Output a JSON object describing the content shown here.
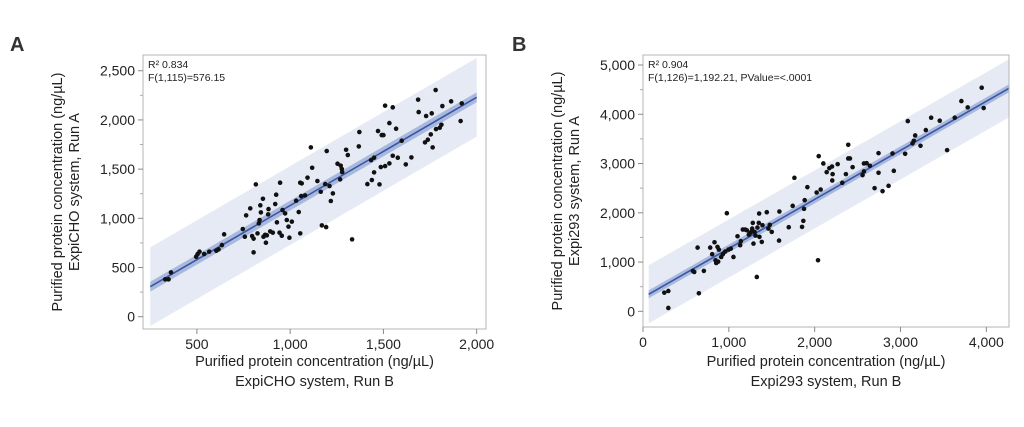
{
  "chart_data": [
    {
      "type": "scatter",
      "panel_label": "A",
      "stats": [
        "R² 0.834",
        "F(1,115)=576.15"
      ],
      "xlabel": [
        "Purified protein concentration (ng/µL)",
        "ExpiCHO system, Run B"
      ],
      "ylabel": [
        "Purified protein concentration (ng/µL)",
        "ExpiCHO system, Run A"
      ],
      "xlim": [
        211,
        2050
      ],
      "ylim": [
        -125,
        2660
      ],
      "xticks": [
        500,
        1000,
        1500,
        2000
      ],
      "xtick_labels": [
        "500",
        "1,000",
        "1,500",
        "2,000"
      ],
      "yticks": [
        0,
        500,
        1000,
        1500,
        2000,
        2500
      ],
      "ytick_labels": [
        "0",
        "500",
        "1,000",
        "1,500",
        "2,000",
        "2,500"
      ],
      "grid": false,
      "fit": {
        "slope": 1.1,
        "intercept": 30,
        "x_range": [
          250,
          2000
        ],
        "confidence_halfwidth": 50,
        "prediction_halfwidth": 400
      },
      "colors": {
        "points": "#111111",
        "fit_line": "#3a56a3",
        "confidence_band": "#a9b9de",
        "prediction_band": "#e5eaf5"
      },
      "points": [
        [
          330,
          380
        ],
        [
          348,
          380
        ],
        [
          361,
          450
        ],
        [
          496,
          610
        ],
        [
          504,
          637
        ],
        [
          514,
          661
        ],
        [
          539,
          637
        ],
        [
          566,
          661
        ],
        [
          604,
          671
        ],
        [
          616,
          684
        ],
        [
          634,
          728
        ],
        [
          646,
          837
        ],
        [
          746,
          891
        ],
        [
          757,
          813
        ],
        [
          764,
          1030
        ],
        [
          786,
          1101
        ],
        [
          796,
          820
        ],
        [
          804,
          793
        ],
        [
          804,
          654
        ],
        [
          816,
          1345
        ],
        [
          825,
          847
        ],
        [
          832,
          949
        ],
        [
          836,
          983
        ],
        [
          840,
          1132
        ],
        [
          843,
          1060
        ],
        [
          854,
          1199
        ],
        [
          857,
          813
        ],
        [
          866,
          833
        ],
        [
          870,
          752
        ],
        [
          875,
          827
        ],
        [
          882,
          1040
        ],
        [
          884,
          1094
        ],
        [
          893,
          867
        ],
        [
          907,
          854
        ],
        [
          920,
          1145
        ],
        [
          925,
          1240
        ],
        [
          929,
          959
        ],
        [
          943,
          854
        ],
        [
          946,
          1362
        ],
        [
          955,
          823
        ],
        [
          959,
          1084
        ],
        [
          973,
          1050
        ],
        [
          982,
          983
        ],
        [
          991,
          915
        ],
        [
          996,
          803
        ],
        [
          1009,
          966
        ],
        [
          1032,
          1179
        ],
        [
          1046,
          1064
        ],
        [
          1054,
          1362
        ],
        [
          1054,
          847
        ],
        [
          1059,
          1226
        ],
        [
          1062,
          1355
        ],
        [
          1080,
          1233
        ],
        [
          1093,
          1413
        ],
        [
          1111,
          1721
        ],
        [
          1118,
          1514
        ],
        [
          1146,
          1379
        ],
        [
          1164,
          1270
        ],
        [
          1170,
          928
        ],
        [
          1188,
          1348
        ],
        [
          1193,
          911
        ],
        [
          1196,
          1684
        ],
        [
          1211,
          1328
        ],
        [
          1218,
          1176
        ],
        [
          1229,
          1253
        ],
        [
          1254,
          1555
        ],
        [
          1268,
          1396
        ],
        [
          1271,
          1535
        ],
        [
          1277,
          1501
        ],
        [
          1279,
          1470
        ],
        [
          1300,
          1697
        ],
        [
          1309,
          1643
        ],
        [
          1332,
          786
        ],
        [
          1368,
          1731
        ],
        [
          1371,
          1877
        ],
        [
          1414,
          1348
        ],
        [
          1434,
          1592
        ],
        [
          1438,
          1389
        ],
        [
          1450,
          1616
        ],
        [
          1450,
          1467
        ],
        [
          1471,
          1887
        ],
        [
          1479,
          1345
        ],
        [
          1486,
          1521
        ],
        [
          1491,
          1846
        ],
        [
          1500,
          1846
        ],
        [
          1509,
          1531
        ],
        [
          1509,
          2145
        ],
        [
          1532,
          1968
        ],
        [
          1532,
          1558
        ],
        [
          1550,
          1636
        ],
        [
          1550,
          2128
        ],
        [
          1568,
          1911
        ],
        [
          1577,
          1616
        ],
        [
          1598,
          1789
        ],
        [
          1620,
          1548
        ],
        [
          1650,
          1619
        ],
        [
          1686,
          2206
        ],
        [
          1689,
          2080
        ],
        [
          1723,
          1772
        ],
        [
          1729,
          2040
        ],
        [
          1738,
          1799
        ],
        [
          1754,
          1853
        ],
        [
          1759,
          2067
        ],
        [
          1764,
          1721
        ],
        [
          1780,
          2304
        ],
        [
          1782,
          1907
        ],
        [
          1802,
          1921
        ],
        [
          1811,
          1951
        ],
        [
          1816,
          2141
        ],
        [
          1863,
          2189
        ],
        [
          1914,
          1989
        ],
        [
          1920,
          2168
        ]
      ]
    },
    {
      "type": "scatter",
      "panel_label": "B",
      "stats": [
        "R² 0.904",
        "F(1,126)=1,192.21, PValue=<.0001"
      ],
      "xlabel": [
        "Purified protein concentration (ng/µL)",
        "Expi293 system, Run B"
      ],
      "ylabel": [
        "Purified protein concentration (ng/µL)",
        "Expi293 system, Run A"
      ],
      "xlim": [
        0,
        4264
      ],
      "ylim": [
        -318,
        5203
      ],
      "xticks": [
        0,
        1000,
        2000,
        3000,
        4000
      ],
      "xtick_labels": [
        "0",
        "1,000",
        "2,000",
        "3,000",
        "4,000"
      ],
      "yticks": [
        0,
        1000,
        2000,
        3000,
        4000,
        5000
      ],
      "ytick_labels": [
        "0",
        "1,000",
        "2,000",
        "3,000",
        "4,000",
        "5,000"
      ],
      "grid": false,
      "fit": {
        "slope": 0.996,
        "intercept": 280,
        "x_range": [
          66,
          4264
        ],
        "confidence_halfwidth": 80,
        "prediction_halfwidth": 590
      },
      "colors": {
        "points": "#111111",
        "fit_line": "#3a56a3",
        "confidence_band": "#a9b9de",
        "prediction_band": "#e5eaf5"
      },
      "points": [
        [
          248,
          379
        ],
        [
          295,
          413
        ],
        [
          295,
          68
        ],
        [
          581,
          820
        ],
        [
          597,
          799
        ],
        [
          636,
          1294
        ],
        [
          651,
          366
        ],
        [
          709,
          820
        ],
        [
          783,
          1294
        ],
        [
          806,
          1159
        ],
        [
          833,
          1402
        ],
        [
          845,
          1037
        ],
        [
          853,
          982
        ],
        [
          868,
          1308
        ],
        [
          876,
          1009
        ],
        [
          884,
          1253
        ],
        [
          911,
          1104
        ],
        [
          930,
          1159
        ],
        [
          957,
          1213
        ],
        [
          977,
          1992
        ],
        [
          996,
          1253
        ],
        [
          1023,
          1274
        ],
        [
          1054,
          1104
        ],
        [
          1101,
          1524
        ],
        [
          1132,
          1342
        ],
        [
          1140,
          1423
        ],
        [
          1163,
          1660
        ],
        [
          1190,
          1660
        ],
        [
          1209,
          1646
        ],
        [
          1233,
          1558
        ],
        [
          1240,
          1578
        ],
        [
          1256,
          1606
        ],
        [
          1272,
          1680
        ],
        [
          1279,
          1795
        ],
        [
          1287,
          1375
        ],
        [
          1299,
          1612
        ],
        [
          1310,
          1538
        ],
        [
          1326,
          698
        ],
        [
          1333,
          1701
        ],
        [
          1349,
          1795
        ],
        [
          1353,
          1985
        ],
        [
          1357,
          1511
        ],
        [
          1384,
          1409
        ],
        [
          1392,
          1748
        ],
        [
          1442,
          2012
        ],
        [
          1461,
          1680
        ],
        [
          1477,
          1755
        ],
        [
          1500,
          1612
        ],
        [
          1585,
          1436
        ],
        [
          1589,
          2026
        ],
        [
          1698,
          1707
        ],
        [
          1744,
          2141
        ],
        [
          1764,
          2710
        ],
        [
          1853,
          1714
        ],
        [
          1868,
          1836
        ],
        [
          1876,
          2080
        ],
        [
          1884,
          2256
        ],
        [
          1915,
          2520
        ],
        [
          2023,
          2412
        ],
        [
          2039,
          1037
        ],
        [
          2047,
          3150
        ],
        [
          2070,
          2473
        ],
        [
          2101,
          3001
        ],
        [
          2140,
          2825
        ],
        [
          2171,
          2906
        ],
        [
          2202,
          2940
        ],
        [
          2205,
          2656
        ],
        [
          2209,
          2785
        ],
        [
          2268,
          2988
        ],
        [
          2322,
          2608
        ],
        [
          2364,
          2785
        ],
        [
          2391,
          3381
        ],
        [
          2391,
          3103
        ],
        [
          2411,
          3103
        ],
        [
          2442,
          2927
        ],
        [
          2558,
          2764
        ],
        [
          2574,
          3001
        ],
        [
          2574,
          2839
        ],
        [
          2605,
          3008
        ],
        [
          2643,
          2954
        ],
        [
          2698,
          2500
        ],
        [
          2744,
          2812
        ],
        [
          2744,
          3211
        ],
        [
          2791,
          2439
        ],
        [
          2861,
          2547
        ],
        [
          2907,
          3204
        ],
        [
          2922,
          2852
        ],
        [
          3054,
          3198
        ],
        [
          3085,
          3862
        ],
        [
          3140,
          3408
        ],
        [
          3155,
          3462
        ],
        [
          3171,
          3570
        ],
        [
          3233,
          3360
        ],
        [
          3295,
          3679
        ],
        [
          3357,
          3930
        ],
        [
          3457,
          3869
        ],
        [
          3543,
          3272
        ],
        [
          3632,
          3930
        ],
        [
          3709,
          4268
        ],
        [
          3783,
          4140
        ],
        [
          3946,
          4539
        ],
        [
          3969,
          4126
        ]
      ]
    }
  ]
}
